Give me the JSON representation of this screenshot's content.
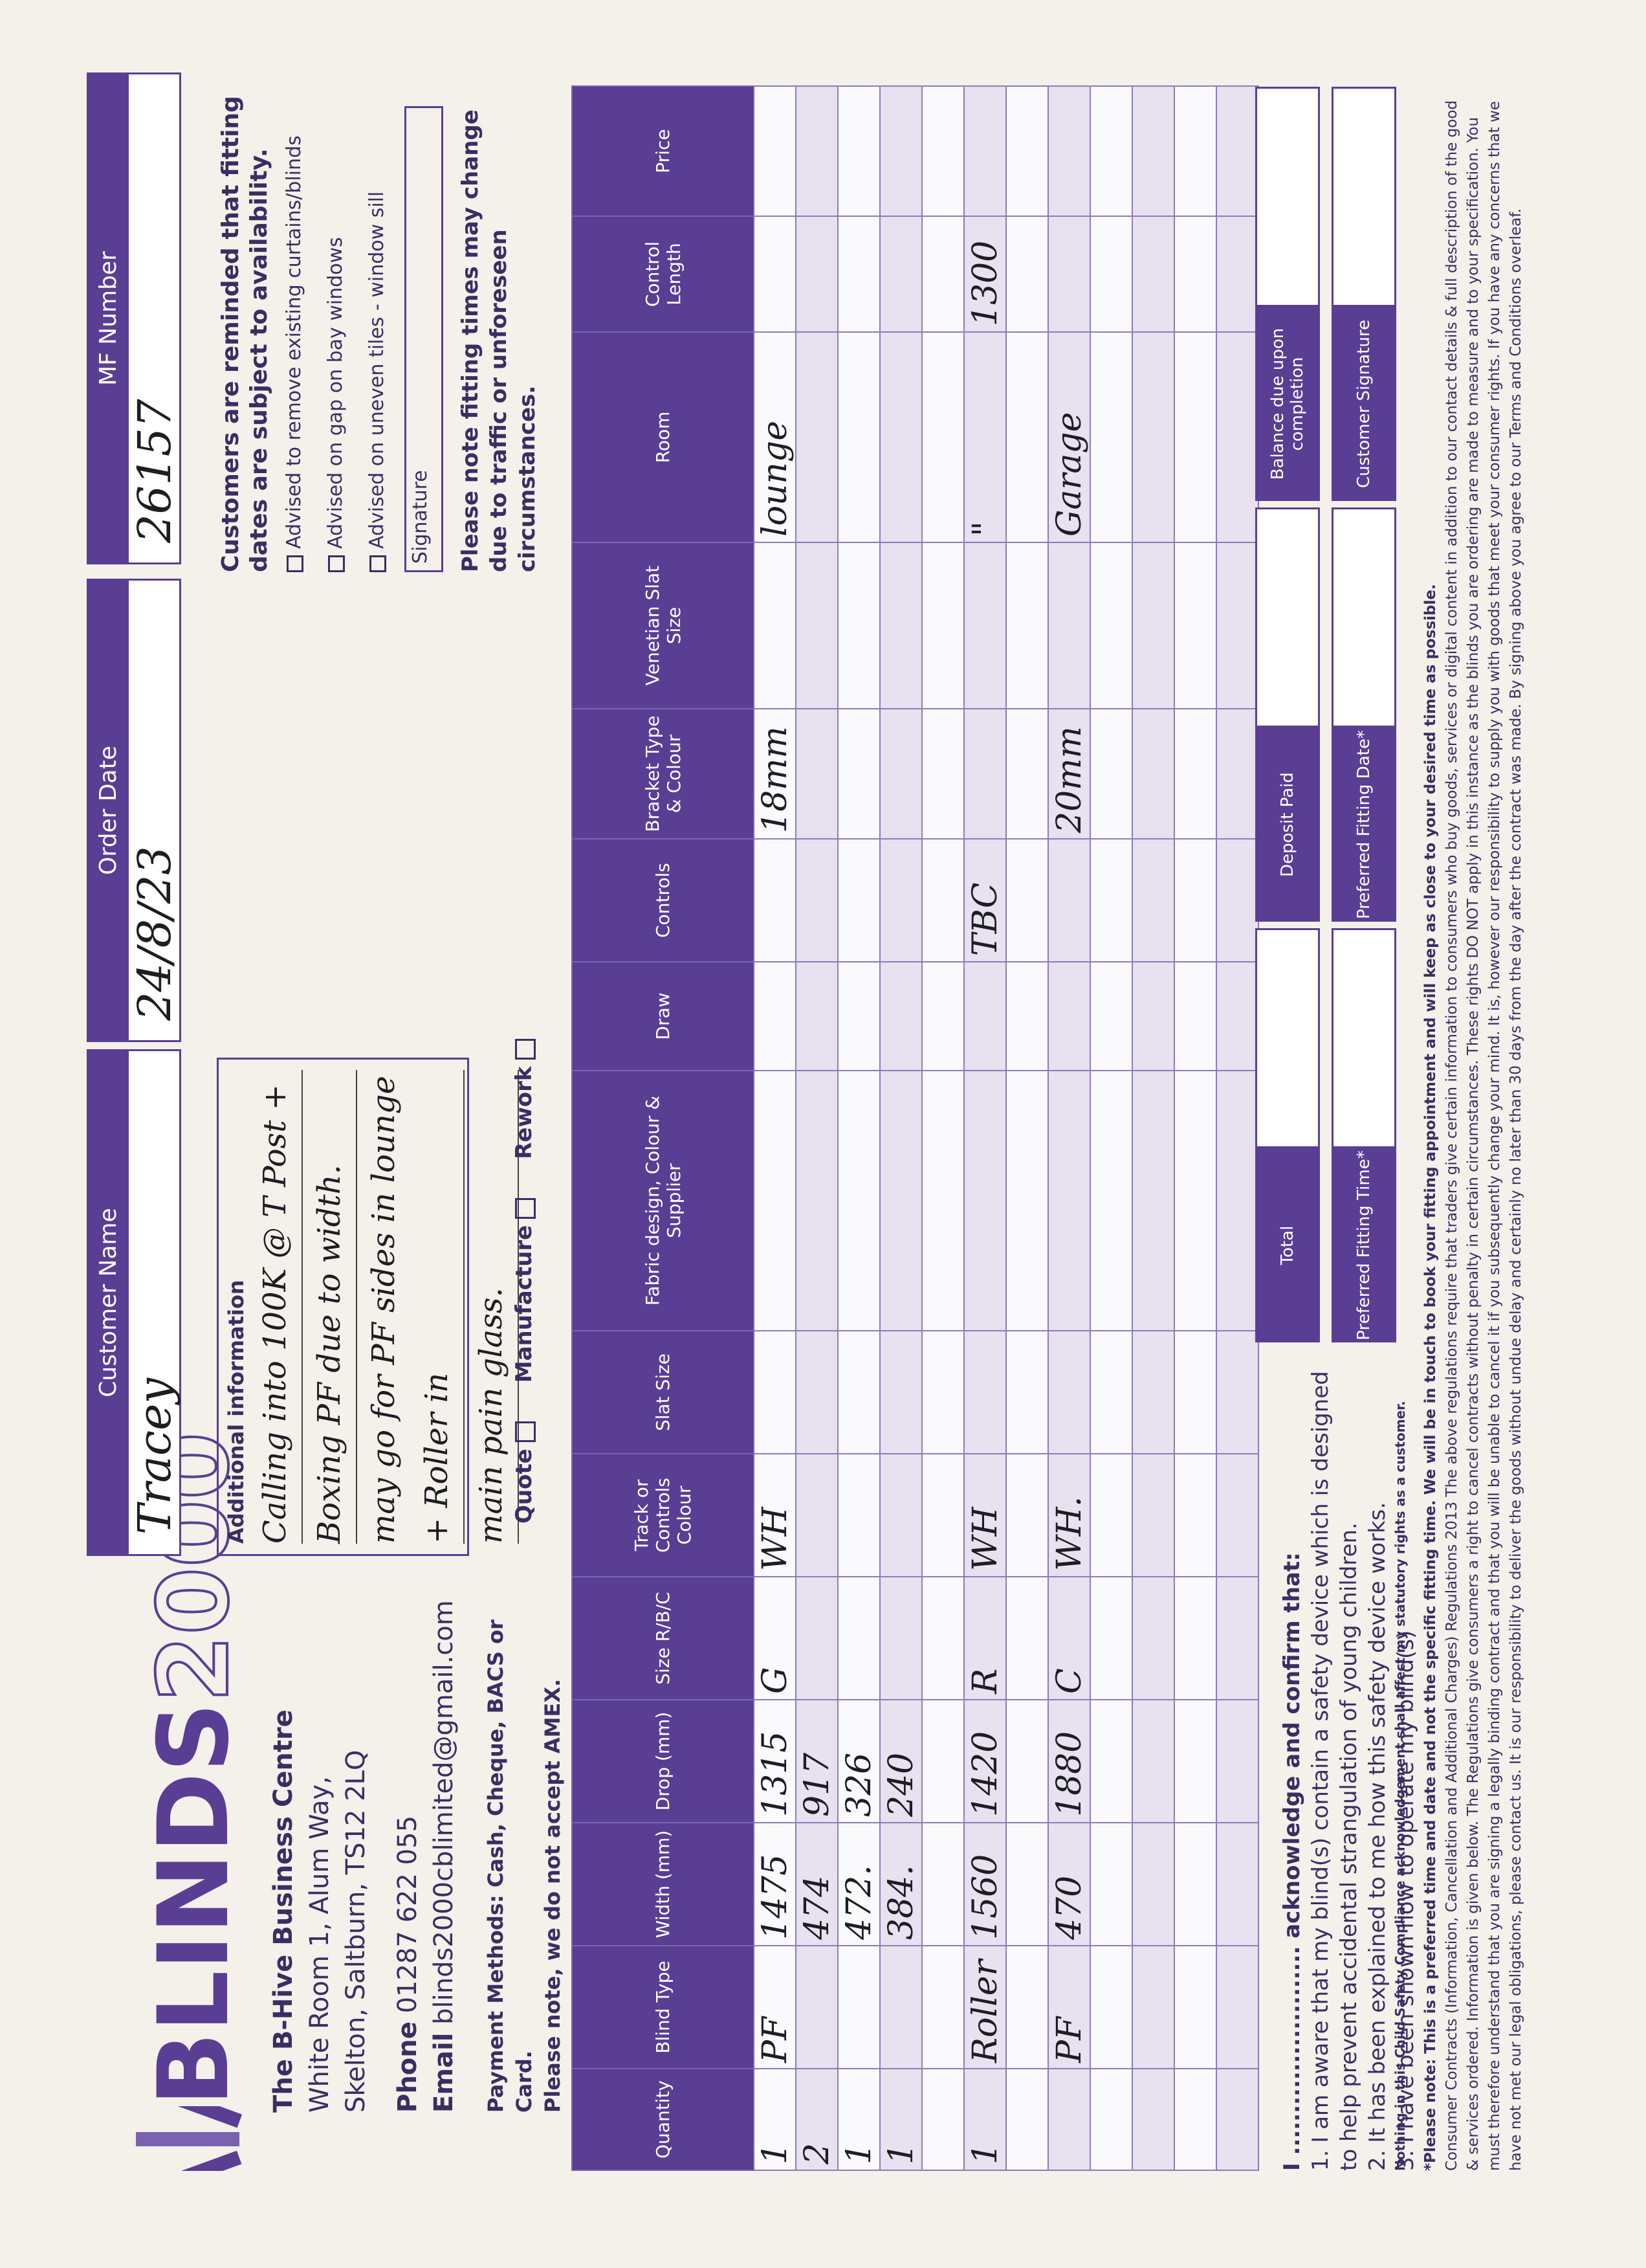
{
  "logo": {
    "brand": "BLINDS",
    "number": "2000"
  },
  "company": {
    "name": "The B-Hive Business Centre",
    "address1": "White Room 1, Alum Way,",
    "address2": "Skelton, Saltburn, TS12 2LQ",
    "phone_label": "Phone",
    "phone": "01287 622 055",
    "email_label": "Email",
    "email": "blinds2000cblimited@gmail.com",
    "payment": "Payment Methods: Cash, Cheque, BACS or Card.",
    "amex": "Please note, we do not accept AMEX."
  },
  "header": {
    "customer_label": "Customer Name",
    "customer": "Tracey",
    "date_label": "Order Date",
    "date": "24/8/23",
    "mf_label": "MF Number",
    "mf": "26157"
  },
  "additional": {
    "label": "Additional information",
    "lines": [
      "Calling into 100K @ T Post +",
      "Boxing PF due to width.",
      "may go for PF sides in lounge + Roller in",
      "main pain glass."
    ],
    "options": [
      "Quote",
      "Manufacture",
      "Rework"
    ]
  },
  "notice": {
    "title": "Customers are reminded that fitting dates are subject to availability.",
    "checks": [
      "Advised to remove existing curtains/blinds",
      "Advised on gap on bay windows",
      "Advised on uneven tiles - window sill"
    ],
    "signature": "Signature",
    "note": "Please note fitting times may change due to traffic or unforeseen circumstances."
  },
  "table": {
    "columns": [
      "Quantity",
      "Blind Type",
      "Width (mm)",
      "Drop (mm)",
      "Size R/B/C",
      "Track or Controls Colour",
      "Slat Size",
      "Fabric design, Colour & Supplier",
      "Draw",
      "Controls",
      "Bracket Type & Colour",
      "Venetian Slat Size",
      "Room",
      "Control Length",
      "Price"
    ],
    "rows": [
      [
        "1",
        "PF",
        "1475",
        "1315",
        "G",
        "WH",
        null,
        null,
        null,
        null,
        "18mm",
        null,
        "lounge",
        null,
        null
      ],
      [
        "2",
        null,
        "474",
        "917",
        null,
        null,
        null,
        null,
        null,
        null,
        null,
        null,
        null,
        null,
        null
      ],
      [
        "1",
        null,
        "472.",
        "326",
        null,
        null,
        null,
        null,
        null,
        null,
        null,
        null,
        null,
        null,
        null
      ],
      [
        "1",
        null,
        "384.",
        "240",
        null,
        null,
        null,
        null,
        null,
        null,
        null,
        null,
        null,
        null,
        null
      ],
      [
        null,
        null,
        null,
        null,
        null,
        null,
        null,
        null,
        null,
        null,
        null,
        null,
        null,
        null,
        null
      ],
      [
        "1",
        "Roller",
        "1560",
        "1420",
        "R",
        "WH",
        null,
        null,
        null,
        "TBC",
        null,
        null,
        "\"",
        "1300",
        null
      ],
      [
        null,
        null,
        null,
        null,
        null,
        null,
        null,
        null,
        null,
        null,
        null,
        null,
        null,
        null,
        null
      ],
      [
        null,
        "PF",
        "470",
        "1880",
        "C",
        "WH.",
        null,
        null,
        null,
        null,
        "20mm",
        null,
        "Garage",
        null,
        null
      ],
      [
        null,
        null,
        null,
        null,
        null,
        null,
        null,
        null,
        null,
        null,
        null,
        null,
        null,
        null,
        null
      ],
      [
        null,
        null,
        null,
        null,
        null,
        null,
        null,
        null,
        null,
        null,
        null,
        null,
        null,
        null,
        null
      ],
      [
        null,
        null,
        null,
        null,
        null,
        null,
        null,
        null,
        null,
        null,
        null,
        null,
        null,
        null,
        null
      ],
      [
        null,
        null,
        null,
        null,
        null,
        null,
        null,
        null,
        null,
        null,
        null,
        null,
        null,
        null,
        null
      ]
    ]
  },
  "acknowledge": {
    "title": "I ......................... acknowledge and confirm that:",
    "items": [
      "1. I am aware that my blind(s) contain a safety device which is designed to help prevent accidental strangulation of young children.",
      "2. It has been explained to me how this safety device works.",
      "3. I have been shown how to operate my blind(s)"
    ],
    "rights": "Nothing in this Child Safety Compliance acknowledgement shall affect my statutory rights as a customer."
  },
  "boxes": [
    "Total",
    "Deposit Paid",
    "Balance due upon completion",
    "Preferred Fitting Time*",
    "Preferred Fitting Date*",
    "Customer Signature"
  ],
  "footer": {
    "note": "*Please note: This is a preferred time and date and not the specific fitting time. We will be in touch to book your fitting appointment and will keep as close to your desired time as possible.",
    "contracts": "Consumer Contracts (Information, Cancellation and Additional Charges) Regulations 2013 The above regulations require that traders give certain information to consumers who buy goods, services or digital content in addition to our contact details & full description of the good & services ordered. Information is given below. The Regulations give consumers a right to cancel contracts without penalty in certain circumstances. These rights DO NOT apply in this instance as the blinds you are ordering are made to measure and to your specification. You must therefore understand that you are signing a legally binding contract and that you will be unable to cancel it if you subsequently change your mind. It is, however our responsibility to supply you with goods that meet your consumer rights. If you have any concerns that we have not met our legal obligations, please contact us. It is our responsibility to deliver the goods without undue delay and certainly no later than 30 days from the day after the contract was made. By signing above you agree to our Terms and Conditions overleaf."
  }
}
